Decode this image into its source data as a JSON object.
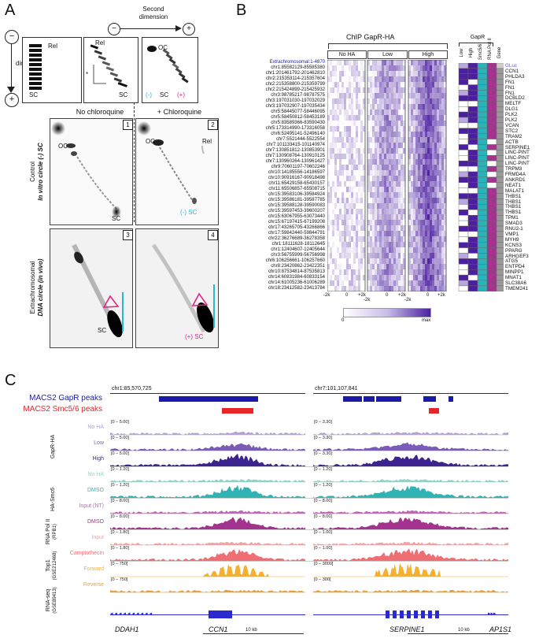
{
  "panels": {
    "a": "A",
    "b": "B",
    "c": "C"
  },
  "panelA": {
    "first_dimension": "First dimension",
    "second_dimension": "Second dimension",
    "rel": "Rel",
    "sc": "SC",
    "oc": "OC",
    "minus": "(-)",
    "plus": "(+)",
    "star": "*",
    "no_chloroquine": "No chloroquine",
    "plus_chloroquine": "+ Chloroquine",
    "control_label_1": "Control",
    "control_label_2": "In vitro circle (-) SC",
    "extra_label_1": "Extrachromosomal",
    "extra_label_2": "DNA circle (in vivo)",
    "minus_sc": "(-) SC",
    "plus_sc": "(+) SC",
    "gel_numbers": [
      "1",
      "2",
      "3",
      "4"
    ]
  },
  "panelB": {
    "title": "ChIP GapR-HA",
    "groups": [
      "No HA",
      "Low",
      "High"
    ],
    "axis_ticks": [
      "-2k",
      "0",
      "+2k"
    ],
    "colorbar_min": "0",
    "colorbar_max": "max",
    "rows": [
      "Extrachromosomal:1-4870",
      "chr1:85582129-85585380",
      "chr1:201461792-201462810",
      "chr2:215353114-215357604",
      "chr2:215358800-215359799",
      "chr2:215424899-215425932",
      "chr3:98785217-98787575",
      "chr3:197031030-197032029",
      "chr3:197032907-197035434",
      "chr5:58445077-58446095",
      "chr5:58450812-58453189",
      "chr5:83589366-83590430",
      "chr5:173314990-173316058",
      "chr6:52495141-52496140",
      "chr7:5521444-5522554",
      "chr7:101133415-101140974",
      "chr7:130851812-130853901",
      "chr7:130908764-130910125",
      "chr7:130960264-130961427",
      "chr9:70601197-70602246",
      "chr10:14185556-14186597",
      "chr10:90916167-90918498",
      "chr11:65429158-65430157",
      "chr11:65506857-65508715",
      "chr15:39583106-39584924",
      "chr15:39586181-39587785",
      "chr15:39588128-39590083",
      "chr15:39597453-39600207",
      "chr15:63067955-63073440",
      "chr15:67197415-67199208",
      "chr17:43265705-43266866",
      "chr17:59842440-59844791",
      "chr22:36276689-36278358",
      "chr1:18111628-18112645",
      "chr1:12404607-12405644",
      "chr3:56755999-56756998",
      "chr6:106256661-106257660",
      "chr8:23420862-23422351",
      "chr10:87534814-87535813",
      "chr14:60831984-60833154",
      "chr14:61005236-61006289",
      "chr18:23412582-23413784"
    ],
    "genes": [
      "GLuc",
      "CCN1",
      "PHLDA3",
      "FN1",
      "FN1",
      "FN1",
      "DCBLD2",
      "MELTF",
      "DLG1",
      "PLK2",
      "PLK2",
      "VCAN",
      "STC2",
      "TRAM2",
      "ACTB",
      "SERPINE1",
      "LINC-PINT",
      "LINC-PINT",
      "LINC-PINT",
      "TRPM3",
      "FRMD4A",
      "ANKRD1",
      "NEAT1",
      "MALAT1",
      "THBS1",
      "THBS1",
      "THBS1",
      "THBS1",
      "TPM1",
      "SMAD3",
      "RNU2-1",
      "VMP1",
      "MYH9",
      "KCNS3",
      "PPARG",
      "ARHGEF3",
      "ATG5",
      "ENTPD4",
      "MINPP1",
      "MNAT1",
      "SLC38A6",
      "TMEM241"
    ],
    "anno_header_group": "GapR",
    "anno_cols": [
      "Low",
      "High",
      "Smc5/6",
      "RNA Pol II",
      "Gene"
    ]
  },
  "panelC": {
    "peak_labels": [
      "MACS2 GapR peaks",
      "MACS2 Smc5/6 peaks"
    ],
    "loci": [
      "chr1:85,570,725",
      "chr7:101,107,841"
    ],
    "tracks": [
      {
        "group": "GapR-HA",
        "label": "No HA",
        "color": "#b3a4d6",
        "range1": "[0 – 5.00]",
        "range2": "[0 – 3.30]"
      },
      {
        "group": "GapR-HA",
        "label": "Low",
        "color": "#7a5cb8",
        "range1": "[0 – 5.00]",
        "range2": "[0 – 3.30]"
      },
      {
        "group": "GapR-HA",
        "label": "High",
        "color": "#3d2390",
        "range1": "[0 – 5.00]",
        "range2": "[0 – 3.30]"
      },
      {
        "group": "HA-Smc6",
        "label": "No HA",
        "color": "#8fd4c8",
        "range1": "[0 – 1.20]",
        "range2": "[0 – 1.20]"
      },
      {
        "group": "HA-Smc6",
        "label": "DMSO",
        "color": "#2fb3b3",
        "range1": "[0 – 1.20]",
        "range2": "[0 – 1.20]"
      },
      {
        "group": "RNA Pol II",
        "label": "Input (NT)",
        "color": "#c266b8",
        "range1": "[0 – 8.00]",
        "range2": "[0 – 8.00]"
      },
      {
        "group": "RNA Pol II",
        "label": "DMSO",
        "color": "#a3338f",
        "range1": "[0 – 8.00]",
        "range2": "[0 – 8.00]"
      },
      {
        "group": "Top1",
        "label": "Input",
        "color": "#f4a3a3",
        "range1": "[0 – 1.80]",
        "range2": "[0 – 1.00]"
      },
      {
        "group": "Top1",
        "label": "Camptothecin",
        "color": "#ee6e73",
        "range1": "[0 – 1.80]",
        "range2": "[0 – 1.00]"
      },
      {
        "group": "RNA-seq",
        "label": "Forward",
        "color": "#f5b12e",
        "range1": "[0 – 750]",
        "range2": "[0 – 3000]"
      },
      {
        "group": "RNA-seq",
        "label": "Reverse",
        "color": "#e8a13a",
        "range1": "[0 – 750]",
        "range2": "[0 – 300]"
      }
    ],
    "group_labels": {
      "gapr": "GapR-HA",
      "smc6": "HA-Smc6",
      "pol2": "RNA Pol II",
      "pol2_sub": "(RPB1)",
      "top1": "Top1",
      "top1_sub": "(GSE212468)",
      "rnaseq": "RNA-seq",
      "rnaseq_sub": "(GSE89413)"
    },
    "genes_left": [
      "DDAH1",
      "CCN1"
    ],
    "genes_right": [
      "SERPINE1",
      "AP1S1"
    ],
    "scale_label": "10 kb"
  },
  "colors": {
    "gapr_peak": "#1a1aa6",
    "smc_peak": "#e8262a",
    "cyan": "#2bb5d8",
    "magenta": "#e0268a",
    "heat_dark": "#4b1fa0",
    "gene_blue": "#2a2ad0"
  }
}
